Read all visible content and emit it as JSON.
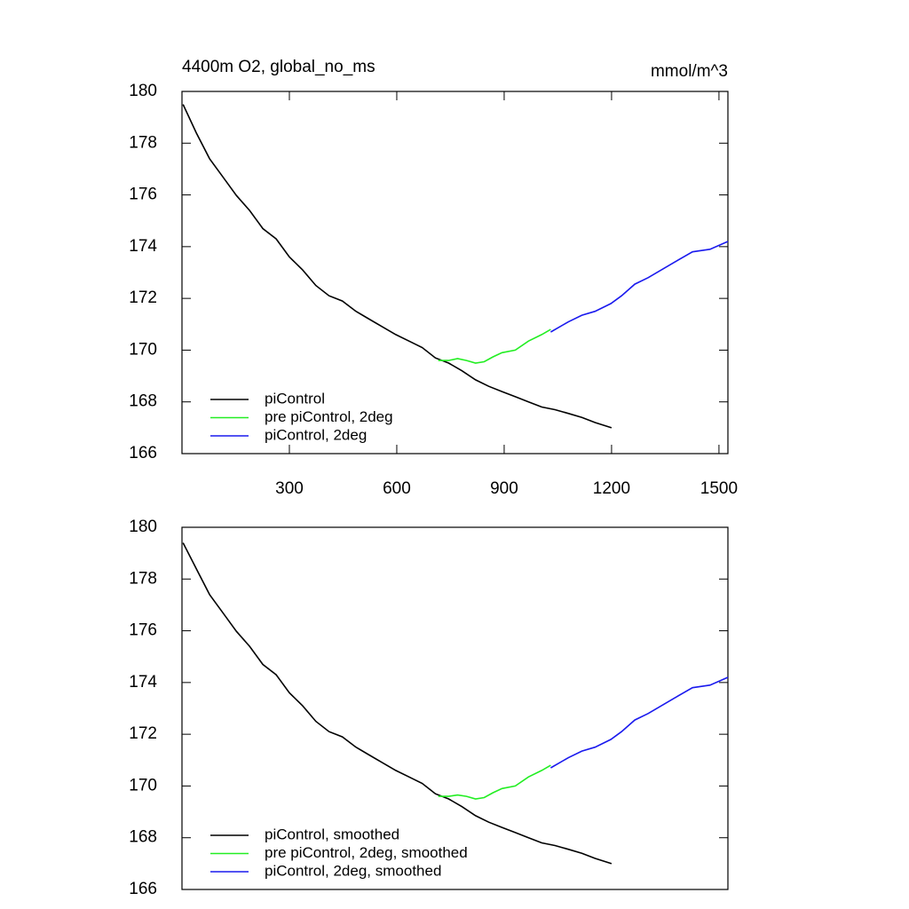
{
  "chart_data": [
    {
      "type": "line",
      "title": "4400m O2, global_no_ms",
      "units": "mmol/m^3",
      "xlim": [
        0,
        1525
      ],
      "xticks": [
        300,
        600,
        900,
        1200,
        1500
      ],
      "ylim": [
        166,
        180
      ],
      "yticks": [
        166,
        168,
        170,
        172,
        174,
        176,
        178,
        180
      ],
      "legend": "lower left",
      "series": [
        {
          "name": "piControl",
          "color": "#000000",
          "x": [
            3,
            40,
            77,
            114,
            152,
            189,
            226,
            263,
            300,
            337,
            374,
            411,
            448,
            486,
            523,
            560,
            597,
            634,
            671,
            708,
            745,
            782,
            820,
            857,
            894,
            931,
            968,
            1005,
            1042,
            1080,
            1117,
            1154,
            1200
          ],
          "values": [
            179.5,
            178.4,
            177.4,
            176.7,
            175.98,
            175.4,
            174.7,
            174.3,
            173.6,
            173.1,
            172.5,
            172.1,
            171.9,
            171.5,
            171.2,
            170.9,
            170.6,
            170.35,
            170.1,
            169.7,
            169.5,
            169.2,
            168.85,
            168.6,
            168.4,
            168.2,
            168.0,
            167.8,
            167.7,
            167.55,
            167.4,
            167.2,
            167.0
          ]
        },
        {
          "name": "pre piControl, 2deg",
          "color": "#22ee22",
          "x": [
            716,
            745,
            770,
            795,
            820,
            844,
            869,
            894,
            931,
            968,
            1005,
            1030
          ],
          "values": [
            169.6,
            169.6,
            169.67,
            169.6,
            169.5,
            169.55,
            169.74,
            169.9,
            170.0,
            170.35,
            170.6,
            170.8
          ]
        },
        {
          "name": "piControl, 2deg",
          "color": "#1a1aee",
          "x": [
            1030,
            1080,
            1117,
            1154,
            1198,
            1228,
            1265,
            1302,
            1339,
            1376,
            1426,
            1475,
            1525
          ],
          "values": [
            170.7,
            171.1,
            171.35,
            171.5,
            171.8,
            172.1,
            172.55,
            172.8,
            173.1,
            173.4,
            173.8,
            173.9,
            174.2
          ]
        }
      ]
    },
    {
      "type": "line",
      "xlim": [
        0,
        1525
      ],
      "ylim": [
        166,
        180
      ],
      "yticks": [
        166,
        168,
        170,
        172,
        174,
        176,
        178,
        180
      ],
      "legend": "lower left",
      "series": [
        {
          "name": "piControl, smoothed",
          "color": "#000000",
          "x": [
            3,
            40,
            77,
            114,
            152,
            189,
            226,
            263,
            300,
            337,
            374,
            411,
            448,
            486,
            523,
            560,
            597,
            634,
            671,
            708,
            745,
            782,
            820,
            857,
            894,
            931,
            968,
            1005,
            1042,
            1080,
            1117,
            1154,
            1200
          ],
          "values": [
            179.4,
            178.4,
            177.4,
            176.7,
            175.98,
            175.4,
            174.7,
            174.3,
            173.6,
            173.1,
            172.5,
            172.1,
            171.9,
            171.5,
            171.2,
            170.9,
            170.6,
            170.35,
            170.1,
            169.7,
            169.5,
            169.2,
            168.85,
            168.6,
            168.4,
            168.2,
            168.0,
            167.8,
            167.7,
            167.55,
            167.4,
            167.2,
            167.0
          ]
        },
        {
          "name": "pre piControl, 2deg, smoothed",
          "color": "#22ee22",
          "x": [
            716,
            745,
            770,
            795,
            820,
            844,
            869,
            894,
            931,
            968,
            1005,
            1030
          ],
          "values": [
            169.6,
            169.6,
            169.65,
            169.6,
            169.5,
            169.55,
            169.74,
            169.9,
            170.0,
            170.35,
            170.6,
            170.8
          ]
        },
        {
          "name": "piControl, 2deg, smoothed",
          "color": "#1a1aee",
          "x": [
            1030,
            1080,
            1117,
            1154,
            1198,
            1228,
            1265,
            1302,
            1339,
            1376,
            1426,
            1475,
            1525
          ],
          "values": [
            170.7,
            171.1,
            171.35,
            171.5,
            171.8,
            172.1,
            172.55,
            172.8,
            173.1,
            173.4,
            173.8,
            173.9,
            174.2
          ]
        }
      ]
    }
  ]
}
